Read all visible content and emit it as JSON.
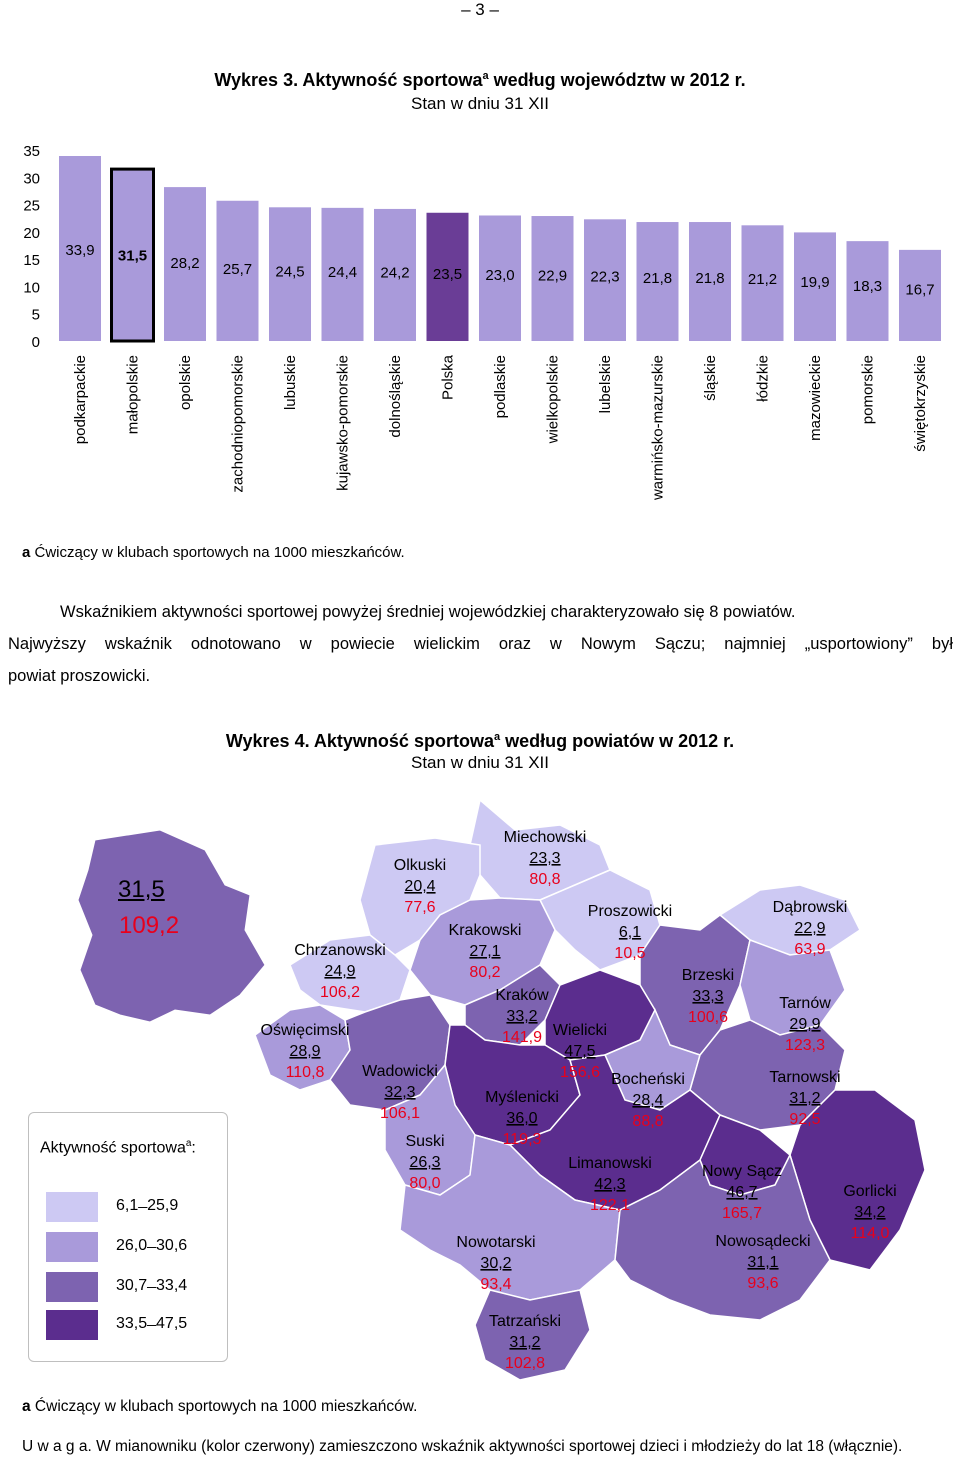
{
  "page_number": "– 3 –",
  "chart1": {
    "title_main": "Wykres 3. Aktywność sportowa",
    "title_sup": "a",
    "title_rest": " według województw w 2012 r.",
    "subtitle": "Stan w dniu 31 XII",
    "footnote_marker": "a",
    "footnote_text": " Ćwiczący w klubach sportowych na 1000 mieszkańców."
  },
  "chart_data": {
    "type": "bar",
    "title": "Wykres 3. Aktywność sportowa według województw w 2012 r.",
    "subtitle": "Stan w dniu 31 XII",
    "categories": [
      "podkarpackie",
      "małopolskie",
      "opolskie",
      "zachodniopomorskie",
      "lubuskie",
      "kujawsko-pomorskie",
      "dolnośląskie",
      "Polska",
      "podlaskie",
      "wielkopolskie",
      "lubelskie",
      "warmińsko-mazurskie",
      "śląskie",
      "łódzkie",
      "mazowieckie",
      "pomorskie",
      "świętokrzyskie"
    ],
    "values": [
      33.9,
      31.5,
      28.2,
      25.7,
      24.5,
      24.4,
      24.2,
      23.5,
      23.0,
      22.9,
      22.3,
      21.8,
      21.8,
      21.2,
      19.9,
      18.3,
      16.7
    ],
    "value_labels": [
      "33,9",
      "31,5",
      "28,2",
      "25,7",
      "24,5",
      "24,4",
      "24,2",
      "23,5",
      "23,0",
      "22,9",
      "22,3",
      "21,8",
      "21,8",
      "21,2",
      "19,9",
      "18,3",
      "16,7"
    ],
    "highlight": {
      "Polska": "#6a3d96",
      "małopolskie": "outlined"
    },
    "bar_color": "#a99ada",
    "ylim": [
      0,
      35
    ],
    "yticks": [
      "0",
      "5",
      "10",
      "15",
      "20",
      "25",
      "30",
      "35"
    ],
    "grid": false
  },
  "paragraph": {
    "line1": "Wskaźnikiem aktywności sportowej powyżej średniej wojewódzkiej charakteryzowało się 8 powiatów.",
    "line2": "Najwyższy wskaźnik odnotowano w powiecie wielickim oraz w Nowym Sączu; najmniej „usportowiony” był",
    "line3": "powiat proszowicki."
  },
  "chart2": {
    "title_main": "Wykres 4. Aktywność sportowa",
    "title_sup": "a",
    "title_rest": " według powiatów w 2012 r.",
    "subtitle": "Stan w dniu 31 XII"
  },
  "voivodeship": {
    "value": "31,5",
    "value_red": "109,2",
    "color": "#7d63b0"
  },
  "legend": {
    "title": "Aktywność sportowa",
    "title_sup": "a",
    "title_tail": ":",
    "items": [
      {
        "label": "6,1 ̶ 25,9",
        "color": "#cdc9f3"
      },
      {
        "label": "26,0 ̶ 30,6",
        "color": "#a99ada"
      },
      {
        "label": "30,7 ̶ 33,4",
        "color": "#7d63b0"
      },
      {
        "label": "33,5 ̶ 47,5",
        "color": "#5b2d8e"
      }
    ]
  },
  "districts": [
    {
      "name": "Miechowski",
      "value": "23,3",
      "red": "80,8",
      "color": "#cdc9f3"
    },
    {
      "name": "Olkuski",
      "value": "20,4",
      "red": "77,6",
      "color": "#cdc9f3"
    },
    {
      "name": "Proszowicki",
      "value": "6,1",
      "red": "10,5",
      "color": "#cdc9f3"
    },
    {
      "name": "Dąbrowski",
      "value": "22,9",
      "red": "63,9",
      "color": "#cdc9f3"
    },
    {
      "name": "Krakowski",
      "value": "27,1",
      "red": "80,2",
      "color": "#a99ada"
    },
    {
      "name": "Chrzanowski",
      "value": "24,9",
      "red": "106,2",
      "color": "#cdc9f3"
    },
    {
      "name": "Brzeski",
      "value": "33,3",
      "red": "100,6",
      "color": "#7d63b0"
    },
    {
      "name": "Kraków",
      "value": "33,2",
      "red": "141,9",
      "color": "#7d63b0"
    },
    {
      "name": "Tarnów",
      "value": "29,9",
      "red": "123,3",
      "color": "#a99ada"
    },
    {
      "name": "Oświęcimski",
      "value": "28,9",
      "red": "110,8",
      "color": "#a99ada"
    },
    {
      "name": "Wielicki",
      "value": "47,5",
      "red": "156,6",
      "color": "#5b2d8e"
    },
    {
      "name": "Wadowicki",
      "value": "32,3",
      "red": "106,1",
      "color": "#7d63b0"
    },
    {
      "name": "Bocheński",
      "value": "28,4",
      "red": "88,8",
      "color": "#a99ada"
    },
    {
      "name": "Tarnowski",
      "value": "31,2",
      "red": "92,5",
      "color": "#7d63b0"
    },
    {
      "name": "Myślenicki",
      "value": "36,0",
      "red": "119,3",
      "color": "#5b2d8e"
    },
    {
      "name": "Suski",
      "value": "26,3",
      "red": "80,0",
      "color": "#a99ada"
    },
    {
      "name": "Limanowski",
      "value": "42,3",
      "red": "122,1",
      "color": "#5b2d8e"
    },
    {
      "name": "Nowy Sącz",
      "value": "46,7",
      "red": "165,7",
      "color": "#5b2d8e"
    },
    {
      "name": "Gorlicki",
      "value": "34,2",
      "red": "114,0",
      "color": "#5b2d8e"
    },
    {
      "name": "Nowotarski",
      "value": "30,2",
      "red": "93,4",
      "color": "#a99ada"
    },
    {
      "name": "Nowosądecki",
      "value": "31,1",
      "red": "93,6",
      "color": "#7d63b0"
    },
    {
      "name": "Tatrzański",
      "value": "31,2",
      "red": "102,8",
      "color": "#7d63b0"
    }
  ],
  "note2": {
    "marker": "a",
    "text": " Ćwiczący w klubach sportowych na 1000 mieszkańców."
  },
  "uwaga": {
    "label": "U w a g a.",
    "text": " W mianowniku (kolor czerwony) zamieszczono wskaźnik aktywności sportowej dzieci i młodzieży do lat 18 (włącznie)."
  }
}
